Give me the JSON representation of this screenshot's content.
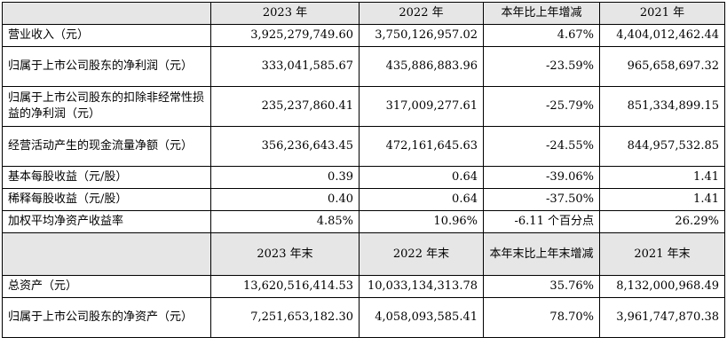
{
  "header1": [
    "",
    "2023 年",
    "2022 年",
    "本年比上年增减",
    "2021 年"
  ],
  "rows1": [
    {
      "label": "营业收入（元）",
      "v2023": "3,925,279,749.60",
      "v2022": "3,750,126,957.02",
      "change": "4.67%",
      "v2021": "4,404,012,462.44"
    },
    {
      "label": "归属于上市公司股东的净利润（元）",
      "v2023": "333,041,585.67",
      "v2022": "435,886,883.96",
      "change": "-23.59%",
      "v2021": "965,658,697.32"
    },
    {
      "label": "归属于上市公司股东的扣除非经常性损益的净利润（元）",
      "v2023": "235,237,860.41",
      "v2022": "317,009,277.61",
      "change": "-25.79%",
      "v2021": "851,334,899.15"
    },
    {
      "label": "经营活动产生的现金流量净额（元）",
      "v2023": "356,236,643.45",
      "v2022": "472,161,645.63",
      "change": "-24.55%",
      "v2021": "844,957,532.85"
    },
    {
      "label": "基本每股收益（元/股）",
      "v2023": "0.39",
      "v2022": "0.64",
      "change": "-39.06%",
      "v2021": "1.41"
    },
    {
      "label": "稀释每股收益（元/股）",
      "v2023": "0.40",
      "v2022": "0.64",
      "change": "-37.50%",
      "v2021": "1.41"
    },
    {
      "label": "加权平均净资产收益率",
      "v2023": "4.85%",
      "v2022": "10.96%",
      "change": "-6.11 个百分点",
      "v2021": "26.29%"
    }
  ],
  "header2": [
    "",
    "2023 年末",
    "2022 年末",
    "本年末比上年末增减",
    "2021 年末"
  ],
  "rows2": [
    {
      "label": "总资产（元）",
      "v2023": "13,620,516,414.53",
      "v2022": "10,033,134,313.78",
      "change": "35.76%",
      "v2021": "8,132,000,968.49"
    },
    {
      "label": "归属于上市公司股东的净资产（元）",
      "v2023": "7,251,653,182.30",
      "v2022": "4,058,093,585.41",
      "change": "78.70%",
      "v2021": "3,961,747,870.38"
    }
  ]
}
